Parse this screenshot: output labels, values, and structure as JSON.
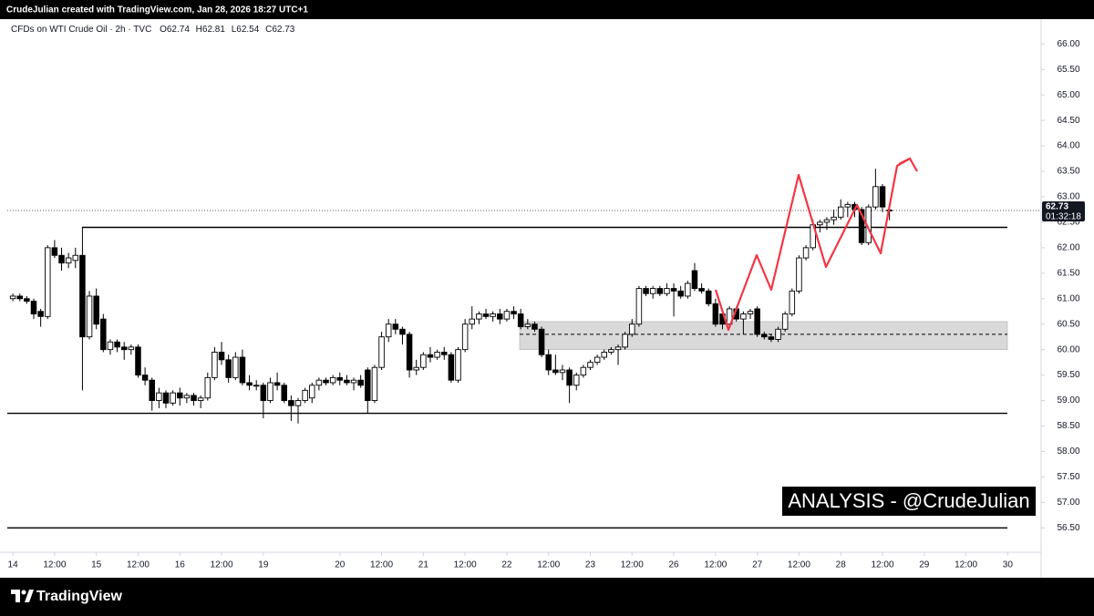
{
  "header": {
    "author_line": "CrudeJulian created with TradingView.com, Jan 28, 2026 18:27 UTC+1"
  },
  "chart_data": {
    "type": "candlestick",
    "symbol": "CFDs on WTI Crude Oil · 2h · TVC",
    "legend_prefixes": [
      "O",
      "H",
      "L",
      "C"
    ],
    "up_color": "#ffffff",
    "down_color": "#000000",
    "outline_color": "#000000",
    "xlim": [
      -0.8,
      147.8
    ],
    "xticks": [
      {
        "value": 0,
        "label": "14"
      },
      {
        "value": 6,
        "label": "12:00"
      },
      {
        "value": 12,
        "label": "15"
      },
      {
        "value": 18,
        "label": "12:00"
      },
      {
        "value": 24,
        "label": "16"
      },
      {
        "value": 30,
        "label": "12:00"
      },
      {
        "value": 36,
        "label": "19"
      },
      {
        "value": 47,
        "label": "20"
      },
      {
        "value": 53,
        "label": "12:00"
      },
      {
        "value": 59,
        "label": "21"
      },
      {
        "value": 65,
        "label": "12:00"
      },
      {
        "value": 71,
        "label": "22"
      },
      {
        "value": 77,
        "label": "12:00"
      },
      {
        "value": 83,
        "label": "23"
      },
      {
        "value": 89,
        "label": "12:00"
      },
      {
        "value": 95,
        "label": "26"
      },
      {
        "value": 101,
        "label": "12:00"
      },
      {
        "value": 107,
        "label": "27"
      },
      {
        "value": 113,
        "label": "12:00"
      },
      {
        "value": 119,
        "label": "28"
      },
      {
        "value": 125,
        "label": "12:00"
      },
      {
        "value": 131,
        "label": "29"
      },
      {
        "value": 137,
        "label": "12:00"
      },
      {
        "value": 143,
        "label": "30"
      }
    ],
    "ylim": [
      56.04,
      66.47
    ],
    "yticks": [
      {
        "value": 56.5,
        "label": "56.50"
      },
      {
        "value": 57,
        "label": "57.00"
      },
      {
        "value": 57.5,
        "label": "57.50"
      },
      {
        "value": 58,
        "label": "58.00"
      },
      {
        "value": 58.5,
        "label": "58.50"
      },
      {
        "value": 59,
        "label": "59.00"
      },
      {
        "value": 59.5,
        "label": "59.50"
      },
      {
        "value": 60,
        "label": "60.00"
      },
      {
        "value": 60.5,
        "label": "60.50"
      },
      {
        "value": 61,
        "label": "61.00"
      },
      {
        "value": 61.5,
        "label": "61.50"
      },
      {
        "value": 62,
        "label": "62.00"
      },
      {
        "value": 62.5,
        "label": "62.50"
      },
      {
        "value": 63,
        "label": "63.00"
      },
      {
        "value": 63.5,
        "label": "63.50"
      },
      {
        "value": 64,
        "label": "64.00"
      },
      {
        "value": 64.5,
        "label": "64.50"
      },
      {
        "value": 65,
        "label": "65.00"
      },
      {
        "value": 65.5,
        "label": "65.50"
      },
      {
        "value": 66,
        "label": "66.00"
      }
    ],
    "levels": [
      62.4,
      58.75,
      56.5
    ],
    "zone": [
      60.0,
      60.55
    ],
    "zone_mid": 60.3,
    "countdown": "01:32:18",
    "watermark": "ANALYSIS - @CrudeJulian",
    "ohlc": [
      [
        61.0,
        61.1,
        60.95,
        61.05
      ],
      [
        61.05,
        61.1,
        60.95,
        61.0
      ],
      [
        61.0,
        61.05,
        60.9,
        60.95
      ],
      [
        60.95,
        61.0,
        60.6,
        60.7
      ],
      [
        60.75,
        60.8,
        60.45,
        60.65
      ],
      [
        60.65,
        62.05,
        60.6,
        62.0
      ],
      [
        62.0,
        62.15,
        61.8,
        61.85
      ],
      [
        61.85,
        62.0,
        61.55,
        61.7
      ],
      [
        61.7,
        61.9,
        61.6,
        61.8
      ],
      [
        61.75,
        62.0,
        61.6,
        61.85
      ],
      [
        61.85,
        62.4,
        59.2,
        60.25
      ],
      [
        60.25,
        61.15,
        60.2,
        61.05
      ],
      [
        61.05,
        61.2,
        60.4,
        60.5
      ],
      [
        60.6,
        60.7,
        59.95,
        60.0
      ],
      [
        60.0,
        60.2,
        59.9,
        60.15
      ],
      [
        60.15,
        60.2,
        59.95,
        60.05
      ],
      [
        60.05,
        60.15,
        59.8,
        60.0
      ],
      [
        60.0,
        60.1,
        59.9,
        60.05
      ],
      [
        60.05,
        60.1,
        59.45,
        59.5
      ],
      [
        59.5,
        59.65,
        59.3,
        59.4
      ],
      [
        59.4,
        59.45,
        58.8,
        59.0
      ],
      [
        59.0,
        59.25,
        58.85,
        59.15
      ],
      [
        59.15,
        59.2,
        58.85,
        58.95
      ],
      [
        58.95,
        59.2,
        58.9,
        59.15
      ],
      [
        59.15,
        59.25,
        58.9,
        59.05
      ],
      [
        59.05,
        59.15,
        58.95,
        59.1
      ],
      [
        59.1,
        59.15,
        58.9,
        59.0
      ],
      [
        59.0,
        59.1,
        58.85,
        59.05
      ],
      [
        59.05,
        59.55,
        59.0,
        59.45
      ],
      [
        59.45,
        60.05,
        59.4,
        59.95
      ],
      [
        59.95,
        60.15,
        59.7,
        59.8
      ],
      [
        59.8,
        59.9,
        59.35,
        59.45
      ],
      [
        59.45,
        59.95,
        59.4,
        59.85
      ],
      [
        59.85,
        60.0,
        59.3,
        59.35
      ],
      [
        59.35,
        59.5,
        59.2,
        59.3
      ],
      [
        59.3,
        59.4,
        59.2,
        59.3
      ],
      [
        59.3,
        59.35,
        58.65,
        59.0
      ],
      [
        59.0,
        59.45,
        58.95,
        59.35
      ],
      [
        59.35,
        59.55,
        59.2,
        59.3
      ],
      [
        59.3,
        59.35,
        58.95,
        59.0
      ],
      [
        59.0,
        59.1,
        58.6,
        58.9
      ],
      [
        58.9,
        59.05,
        58.55,
        59.0
      ],
      [
        59.0,
        59.25,
        58.95,
        59.2
      ],
      [
        59.05,
        59.35,
        58.95,
        59.3
      ],
      [
        59.3,
        59.45,
        59.2,
        59.4
      ],
      [
        59.4,
        59.45,
        59.3,
        59.35
      ],
      [
        59.35,
        59.5,
        59.3,
        59.45
      ],
      [
        59.45,
        59.55,
        59.3,
        59.4
      ],
      [
        59.4,
        59.5,
        59.3,
        59.35
      ],
      [
        59.35,
        59.45,
        59.2,
        59.4
      ],
      [
        59.4,
        59.5,
        59.25,
        59.3
      ],
      [
        59.6,
        59.65,
        58.75,
        59.0
      ],
      [
        59.0,
        59.7,
        58.95,
        59.65
      ],
      [
        59.65,
        60.35,
        59.6,
        60.25
      ],
      [
        60.25,
        60.6,
        60.15,
        60.5
      ],
      [
        60.5,
        60.6,
        60.3,
        60.4
      ],
      [
        60.4,
        60.45,
        60.1,
        60.3
      ],
      [
        60.3,
        60.35,
        59.45,
        59.6
      ],
      [
        59.6,
        59.8,
        59.5,
        59.65
      ],
      [
        59.65,
        59.95,
        59.6,
        59.9
      ],
      [
        59.9,
        60.05,
        59.75,
        59.85
      ],
      [
        59.85,
        60.0,
        59.8,
        59.95
      ],
      [
        59.95,
        60.05,
        59.8,
        59.9
      ],
      [
        59.9,
        59.95,
        59.35,
        59.4
      ],
      [
        59.4,
        60.05,
        59.35,
        60.0
      ],
      [
        60.0,
        60.6,
        59.95,
        60.5
      ],
      [
        60.5,
        60.85,
        60.4,
        60.6
      ],
      [
        60.6,
        60.75,
        60.5,
        60.7
      ],
      [
        60.7,
        60.8,
        60.6,
        60.65
      ],
      [
        60.65,
        60.75,
        60.55,
        60.7
      ],
      [
        60.7,
        60.8,
        60.5,
        60.6
      ],
      [
        60.6,
        60.8,
        60.55,
        60.75
      ],
      [
        60.75,
        60.85,
        60.6,
        60.7
      ],
      [
        60.7,
        60.8,
        60.4,
        60.45
      ],
      [
        60.45,
        60.6,
        60.4,
        60.5
      ],
      [
        60.5,
        60.55,
        60.35,
        60.4
      ],
      [
        60.4,
        60.45,
        59.85,
        59.9
      ],
      [
        59.9,
        60.0,
        59.5,
        59.6
      ],
      [
        59.6,
        59.9,
        59.5,
        59.55
      ],
      [
        59.55,
        59.7,
        59.4,
        59.6
      ],
      [
        59.6,
        59.65,
        58.95,
        59.3
      ],
      [
        59.3,
        59.55,
        59.2,
        59.5
      ],
      [
        59.5,
        59.7,
        59.45,
        59.65
      ],
      [
        59.65,
        59.8,
        59.6,
        59.75
      ],
      [
        59.75,
        59.9,
        59.7,
        59.85
      ],
      [
        59.85,
        60.0,
        59.8,
        59.95
      ],
      [
        59.95,
        60.05,
        59.9,
        60.0
      ],
      [
        60.0,
        60.1,
        59.7,
        60.05
      ],
      [
        60.05,
        60.35,
        60.0,
        60.3
      ],
      [
        60.3,
        60.6,
        60.25,
        60.5
      ],
      [
        60.5,
        61.25,
        60.45,
        61.2
      ],
      [
        61.2,
        61.25,
        61.05,
        61.1
      ],
      [
        61.1,
        61.25,
        61.0,
        61.2
      ],
      [
        61.2,
        61.25,
        61.05,
        61.1
      ],
      [
        61.1,
        61.3,
        61.05,
        61.2
      ],
      [
        61.2,
        61.3,
        60.65,
        61.15
      ],
      [
        61.15,
        61.25,
        61.0,
        61.05
      ],
      [
        61.05,
        61.35,
        61.0,
        61.3
      ],
      [
        61.55,
        61.7,
        61.15,
        61.2
      ],
      [
        61.2,
        61.3,
        61.1,
        61.15
      ],
      [
        61.15,
        61.2,
        60.85,
        60.9
      ],
      [
        60.9,
        61.0,
        60.45,
        60.5
      ],
      [
        60.7,
        60.75,
        60.4,
        60.5
      ],
      [
        60.5,
        60.85,
        60.45,
        60.8
      ],
      [
        60.8,
        60.85,
        60.55,
        60.6
      ],
      [
        60.6,
        60.75,
        60.3,
        60.7
      ],
      [
        60.7,
        60.8,
        60.6,
        60.75
      ],
      [
        60.8,
        60.85,
        60.25,
        60.3
      ],
      [
        60.3,
        60.35,
        60.2,
        60.25
      ],
      [
        60.25,
        60.3,
        60.15,
        60.2
      ],
      [
        60.2,
        60.45,
        60.15,
        60.4
      ],
      [
        60.4,
        60.75,
        60.35,
        60.7
      ],
      [
        60.7,
        61.2,
        60.65,
        61.15
      ],
      [
        61.15,
        61.85,
        61.1,
        61.8
      ],
      [
        61.8,
        62.05,
        61.75,
        62.0
      ],
      [
        62.0,
        62.55,
        61.95,
        62.45
      ],
      [
        62.45,
        62.55,
        62.3,
        62.5
      ],
      [
        62.5,
        62.6,
        62.35,
        62.55
      ],
      [
        62.55,
        62.75,
        62.45,
        62.6
      ],
      [
        62.6,
        62.95,
        62.55,
        62.8
      ],
      [
        62.8,
        62.9,
        62.6,
        62.85
      ],
      [
        62.85,
        62.9,
        62.6,
        62.75
      ],
      [
        62.75,
        62.8,
        62.05,
        62.1
      ],
      [
        62.1,
        62.85,
        62.05,
        62.8
      ],
      [
        62.8,
        63.55,
        62.75,
        63.2
      ],
      [
        63.2,
        63.25,
        62.7,
        62.8
      ],
      [
        62.74,
        62.81,
        62.54,
        62.73
      ]
    ]
  },
  "footer": {
    "brand": "TradingView"
  }
}
